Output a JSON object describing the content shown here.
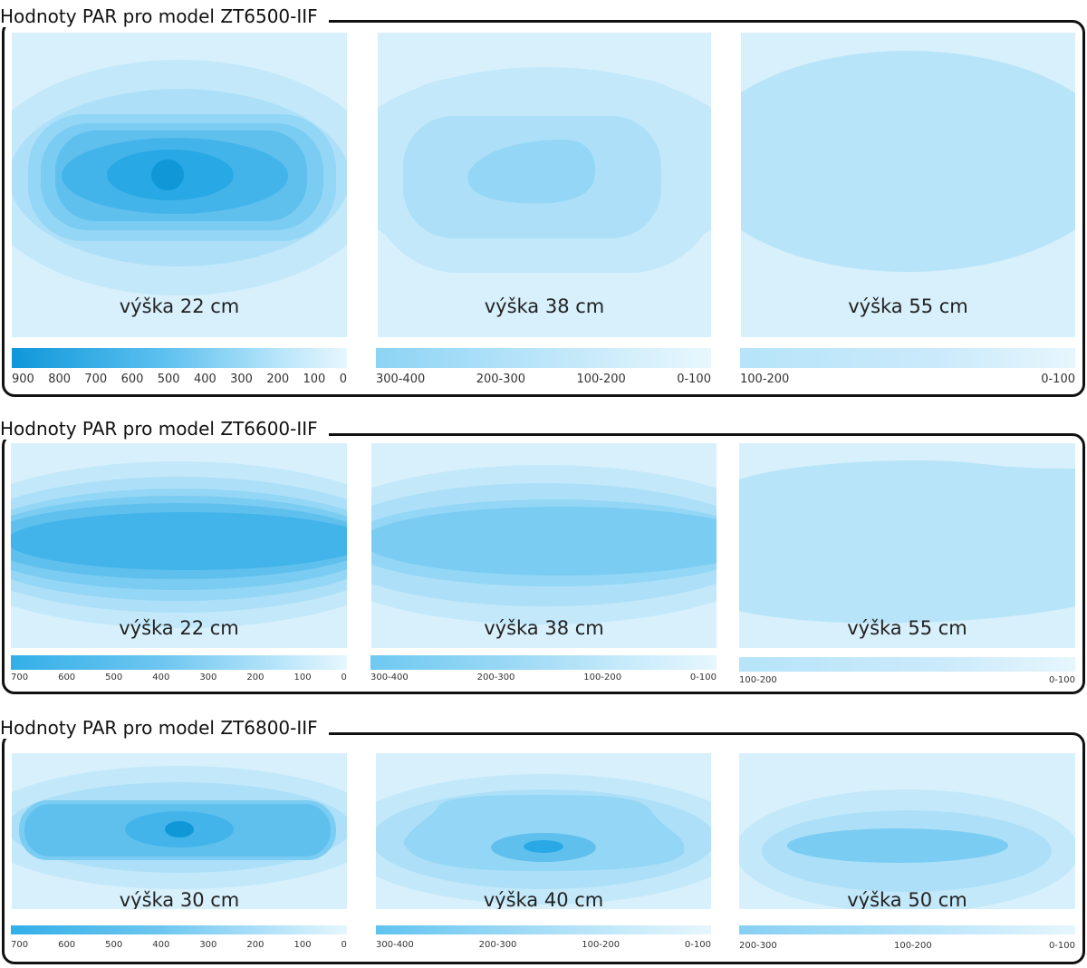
{
  "sections": [
    {
      "title": "Hodnoty PAR pro model ZT6500-IIF",
      "panels": [
        {
          "label": "výška 22 cm",
          "scale_ticks": [
            "900",
            "800",
            "700",
            "600",
            "500",
            "400",
            "300",
            "200",
            "100",
            "0"
          ]
        },
        {
          "label": "výška 38 cm",
          "scale_ticks": [
            "300-400",
            "200-300",
            "100-200",
            "0-100"
          ]
        },
        {
          "label": "výška 55 cm",
          "scale_ticks": [
            "100-200",
            "0-100"
          ]
        }
      ]
    },
    {
      "title": "Hodnoty PAR pro model ZT6600-IIF",
      "panels": [
        {
          "label": "výška 22 cm",
          "scale_ticks": [
            "700",
            "600",
            "500",
            "400",
            "300",
            "200",
            "100",
            "0"
          ]
        },
        {
          "label": "výška 38 cm",
          "scale_ticks": [
            "300-400",
            "200-300",
            "100-200",
            "0-100"
          ]
        },
        {
          "label": "výška 55 cm",
          "scale_ticks": [
            "100-200",
            "0-100"
          ]
        }
      ]
    },
    {
      "title": "Hodnoty PAR pro model ZT6800-IIF",
      "panels": [
        {
          "label": "výška 30 cm",
          "scale_ticks": [
            "700",
            "600",
            "500",
            "400",
            "300",
            "200",
            "100",
            "0"
          ]
        },
        {
          "label": "výška 40 cm",
          "scale_ticks": [
            "300-400",
            "200-300",
            "100-200",
            "0-100"
          ]
        },
        {
          "label": "výška 50 cm",
          "scale_ticks": [
            "200-300",
            "100-200",
            "0-100"
          ]
        }
      ]
    }
  ],
  "colors": {
    "level_0": "#d7f0fc",
    "level_1": "#c3e8fa",
    "level_2": "#ade0f8",
    "level_3": "#94d6f5",
    "level_4": "#7bccf2",
    "level_5": "#5fc0ee",
    "level_6": "#43b4ea",
    "level_7": "#28a8e5",
    "level_8": "#1097d8",
    "frame": "#111111"
  }
}
